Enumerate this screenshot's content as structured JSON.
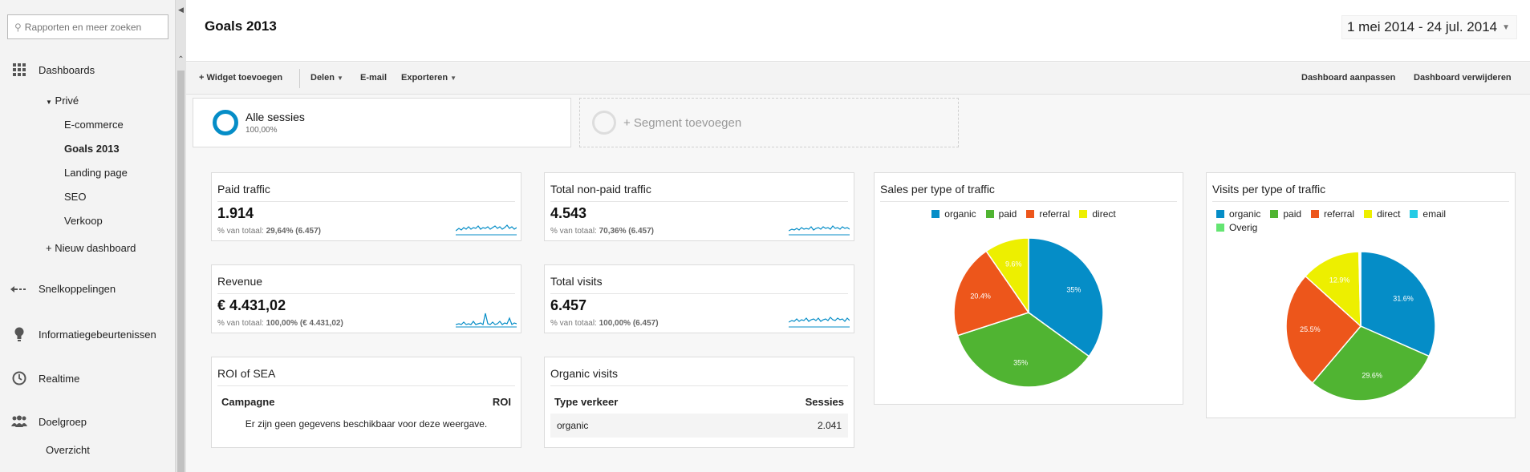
{
  "search": {
    "placeholder": "Rapporten en meer zoeken"
  },
  "sidebar": {
    "dashboards": "Dashboards",
    "prive": "Privé",
    "dashboard_items": [
      "E-commerce",
      "Goals 2013",
      "Landing page",
      "SEO",
      "Verkoop"
    ],
    "new_dashboard": "+ Nieuw dashboard",
    "shortcuts": "Snelkoppelingen",
    "events": "Informatiegebeurtenissen",
    "realtime": "Realtime",
    "audience": "Doelgroep",
    "overview": "Overzicht"
  },
  "header": {
    "title": "Goals 2013",
    "date_range": "1 mei 2014 - 24 jul. 2014"
  },
  "toolbar": {
    "add_widget": "+ Widget toevoegen",
    "share": "Delen",
    "email": "E-mail",
    "export": "Exporteren",
    "customize": "Dashboard aanpassen",
    "delete": "Dashboard verwijderen"
  },
  "segments": {
    "all_name": "Alle sessies",
    "all_pct": "100,00%",
    "add": "+ Segment toevoegen"
  },
  "widgets": {
    "paid": {
      "title": "Paid traffic",
      "value": "1.914",
      "sub_label": "% van totaal:",
      "sub_value": "29,64% (6.457)"
    },
    "nonpaid": {
      "title": "Total non-paid traffic",
      "value": "4.543",
      "sub_label": "% van totaal:",
      "sub_value": "70,36% (6.457)"
    },
    "revenue": {
      "title": "Revenue",
      "value": "€ 4.431,02",
      "sub_label": "% van totaal:",
      "sub_value": "100,00% (€ 4.431,02)"
    },
    "visits": {
      "title": "Total visits",
      "value": "6.457",
      "sub_label": "% van totaal:",
      "sub_value": "100,00% (6.457)"
    },
    "roi": {
      "title": "ROI of SEA",
      "col1": "Campagne",
      "col2": "ROI",
      "empty": "Er zijn geen gegevens beschikbaar voor deze weergave."
    },
    "organic": {
      "title": "Organic visits",
      "col1": "Type verkeer",
      "col2": "Sessies",
      "row_label": "organic",
      "row_value": "2.041"
    }
  },
  "colors": {
    "organic": "#058dc7",
    "paid": "#50b432",
    "referral": "#ed561b",
    "direct": "#edef00",
    "email": "#24cbe5",
    "overig": "#64e572"
  },
  "chart_data": [
    {
      "type": "pie",
      "title": "Sales per type of traffic",
      "categories": [
        "organic",
        "paid",
        "referral",
        "direct"
      ],
      "values": [
        35,
        35,
        20.4,
        9.6
      ],
      "labels": [
        "35%",
        "35%",
        "20.4%",
        "9.6%"
      ],
      "legend": "top-center"
    },
    {
      "type": "pie",
      "title": "Visits per type of traffic",
      "categories": [
        "organic",
        "paid",
        "referral",
        "direct",
        "email",
        "Overig"
      ],
      "values": [
        31.6,
        29.6,
        25.5,
        12.9,
        0.2,
        0.2
      ],
      "labels": [
        "31.6%",
        "29.6%",
        "25.5%",
        "12.9%",
        "",
        ""
      ],
      "legend": "top-left"
    }
  ]
}
